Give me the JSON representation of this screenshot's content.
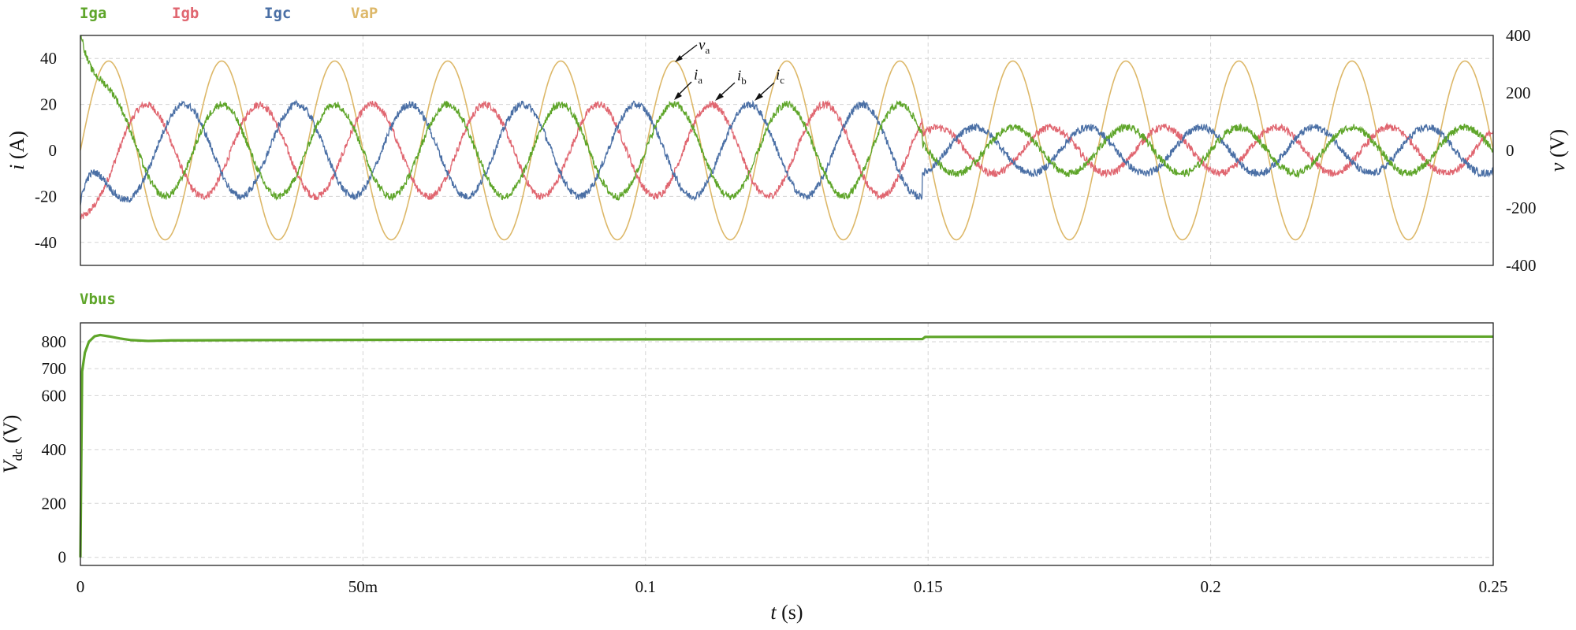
{
  "chart_data": [
    {
      "type": "line",
      "legend": [
        "Iga",
        "Igb",
        "Igc",
        "VaP"
      ],
      "xlabel": "t (s)",
      "ylabel_left": "i (A)",
      "ylabel_right": "v (V)",
      "xlim": [
        0,
        0.25
      ],
      "ylim_left": [
        -50,
        50
      ],
      "ylim_right": [
        -400,
        400
      ],
      "yticks_left": [
        "40",
        "20",
        "0",
        "-20",
        "-40"
      ],
      "yticks_right": [
        "400",
        "200",
        "0",
        "-200",
        "-400"
      ],
      "grid": true,
      "series": [
        {
          "name": "Iga",
          "axis": "left",
          "color": "#5ea529",
          "frequency_hz": 50,
          "amplitude_before": 20,
          "amplitude_after": 10,
          "phase_deg": 0,
          "step_time": 0.149
        },
        {
          "name": "Igb",
          "axis": "left",
          "color": "#e06670",
          "frequency_hz": 50,
          "amplitude_before": 20,
          "amplitude_after": 10,
          "phase_deg": -120,
          "step_time": 0.149
        },
        {
          "name": "Igc",
          "axis": "left",
          "color": "#4a6fa5",
          "frequency_hz": 50,
          "amplitude_before": 20,
          "amplitude_after": 10,
          "phase_deg": 120,
          "step_time": 0.149
        },
        {
          "name": "VaP",
          "axis": "right",
          "color": "#ddb869",
          "frequency_hz": 50,
          "amplitude": 311,
          "phase_deg": 0
        }
      ],
      "annotations": [
        "va",
        "ia",
        "ib",
        "ic"
      ]
    },
    {
      "type": "line",
      "legend": [
        "Vbus"
      ],
      "xlabel": "t (s)",
      "ylabel": "Vdc (V)",
      "xlim": [
        0,
        0.25
      ],
      "ylim": [
        -30,
        870
      ],
      "yticks": [
        "800",
        "700",
        "600",
        "400",
        "200",
        "0"
      ],
      "xticks": [
        "0",
        "50m",
        "0.1",
        "0.15",
        "0.2",
        "0.25"
      ],
      "grid": true,
      "series": [
        {
          "name": "Vbus",
          "color": "#5ea529",
          "points": [
            [
              0,
              0
            ],
            [
              0.0003,
              690
            ],
            [
              0.0008,
              760
            ],
            [
              0.0015,
              800
            ],
            [
              0.0025,
              820
            ],
            [
              0.0035,
              825
            ],
            [
              0.005,
              820
            ],
            [
              0.007,
              812
            ],
            [
              0.009,
              806
            ],
            [
              0.012,
              803
            ],
            [
              0.016,
              805
            ],
            [
              0.03,
              806
            ],
            [
              0.1,
              809
            ],
            [
              0.149,
              810
            ],
            [
              0.1495,
              818
            ],
            [
              0.25,
              819
            ]
          ]
        }
      ]
    }
  ]
}
